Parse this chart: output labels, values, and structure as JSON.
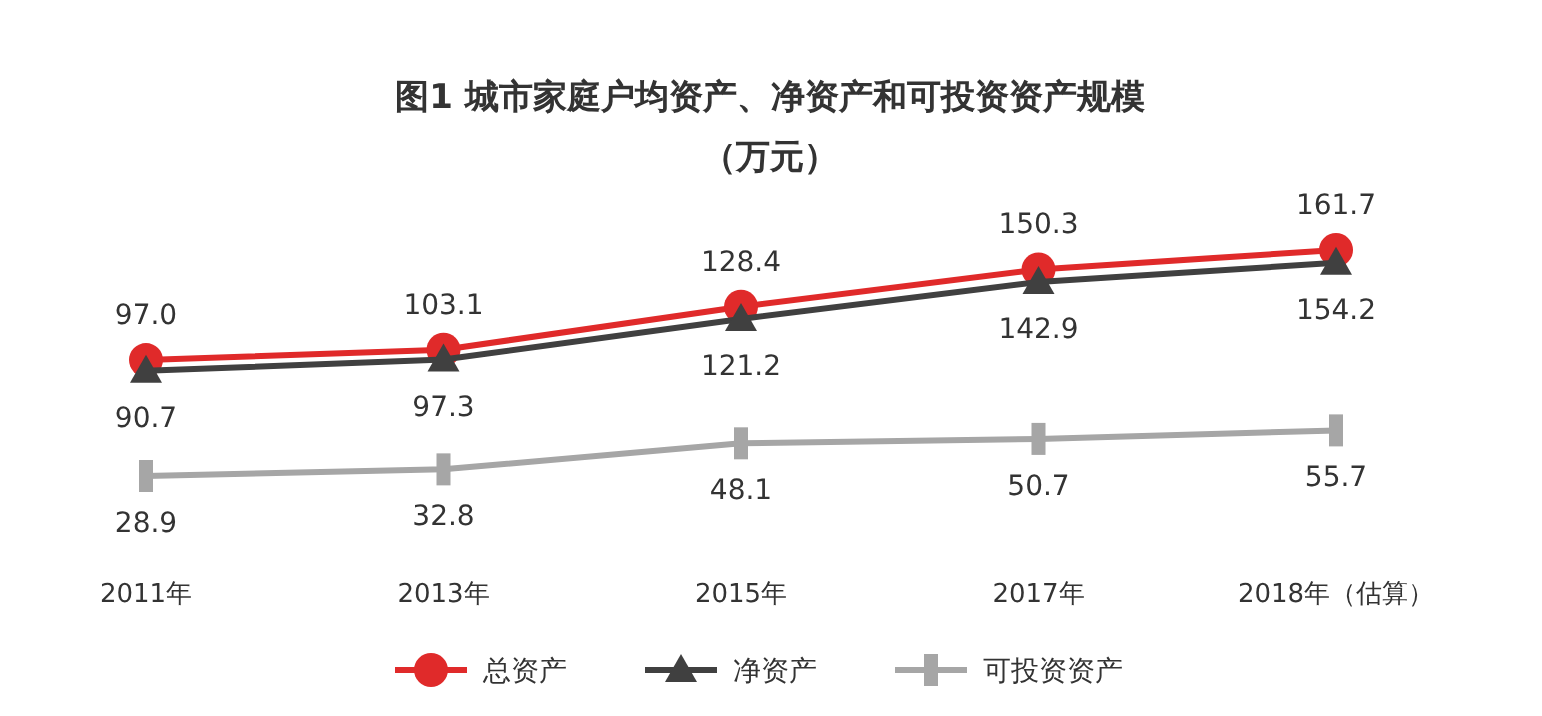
{
  "chart_data": {
    "type": "line",
    "title": "图1  城市家庭户均资产、净资产和可投资资产规模",
    "subtitle": "（万元）",
    "categories": [
      "2011年",
      "2013年",
      "2015年",
      "2017年",
      "2018年（估算）"
    ],
    "series": [
      {
        "name": "总资产",
        "color": "#e02a2a",
        "marker": "circle",
        "values": [
          97.0,
          103.1,
          128.4,
          150.3,
          161.7
        ],
        "value_labels": [
          "97.0",
          "103.1",
          "128.4",
          "150.3",
          "161.7"
        ]
      },
      {
        "name": "净资产",
        "color": "#404040",
        "marker": "triangle",
        "values": [
          90.7,
          97.3,
          121.2,
          142.9,
          154.2
        ],
        "value_labels": [
          "90.7",
          "97.3",
          "121.2",
          "142.9",
          "154.2"
        ]
      },
      {
        "name": "可投资资产",
        "color": "#a6a6a6",
        "marker": "square",
        "values": [
          28.9,
          32.8,
          48.1,
          50.7,
          55.7
        ],
        "value_labels": [
          "28.9",
          "32.8",
          "48.1",
          "50.7",
          "55.7"
        ]
      }
    ],
    "legend": "bottom"
  }
}
